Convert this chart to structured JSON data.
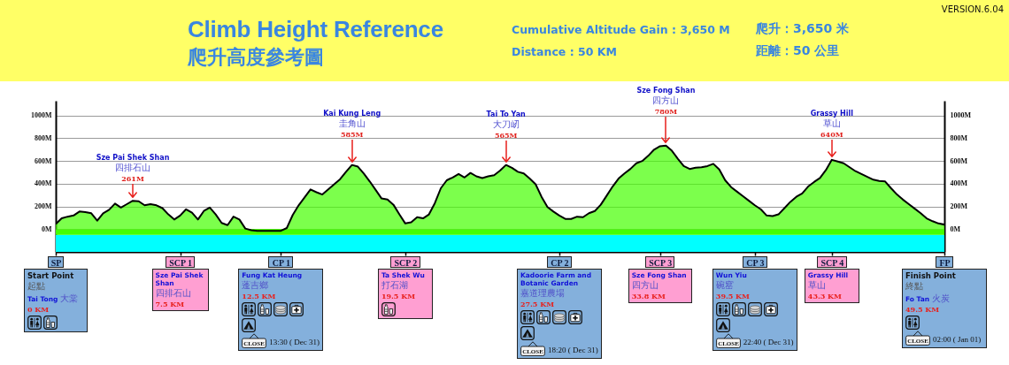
{
  "chart_data": {
    "type": "area",
    "title": "Climb Height Reference",
    "subtitle": "爬升高度參考圖",
    "categories": [
      "SP",
      null,
      null,
      null,
      null,
      null,
      null,
      null,
      null,
      null,
      null,
      null,
      null,
      null,
      null,
      null,
      null,
      null,
      null,
      null,
      null,
      "SCP 1",
      null,
      null,
      null,
      null,
      null,
      null,
      null,
      null,
      null,
      null,
      null,
      null,
      null,
      null,
      null,
      null,
      "CP 1",
      null,
      null,
      null,
      null,
      null,
      null,
      null,
      null,
      null,
      null,
      null,
      null,
      null,
      null,
      null,
      null,
      null,
      null,
      null,
      null,
      "SCP 2",
      null,
      null,
      null,
      null,
      null,
      null,
      null,
      null,
      null,
      null,
      null,
      null,
      null,
      null,
      null,
      null,
      null,
      null,
      null,
      null,
      null,
      null,
      null,
      null,
      null,
      "CP 2",
      null,
      null,
      null,
      null,
      null,
      null,
      null,
      null,
      null,
      null,
      null,
      null,
      null,
      null,
      null,
      null,
      "SCP 3",
      null,
      null,
      null,
      null,
      null,
      null,
      null,
      null,
      null,
      null,
      null,
      null,
      null,
      null,
      null,
      "CP 3",
      null,
      null,
      null,
      null,
      null,
      null,
      null,
      null,
      null,
      null,
      null,
      null,
      "SCP 4",
      null,
      null,
      null,
      null,
      null,
      null,
      null,
      null,
      null,
      null,
      null,
      null,
      null,
      null,
      null,
      null,
      null,
      null,
      "FP"
    ],
    "series": [
      {
        "color": "#44ff00",
        "values": [
          45,
          95,
          110,
          120,
          155,
          150,
          140,
          75,
          140,
          170,
          225,
          190,
          220,
          250,
          245,
          210,
          220,
          210,
          185,
          130,
          85,
          120,
          175,
          145,
          85,
          160,
          190,
          130,
          55,
          35,
          110,
          85,
          5,
          -10,
          -15,
          -15,
          -15,
          -15,
          -15,
          10,
          125,
          210,
          280,
          350,
          325,
          305,
          350,
          395,
          440,
          505,
          565,
          550,
          490,
          420,
          345,
          270,
          260,
          215,
          130,
          50,
          60,
          105,
          95,
          130,
          230,
          360,
          430,
          455,
          485,
          455,
          495,
          465,
          450,
          465,
          475,
          515,
          565,
          540,
          505,
          490,
          445,
          395,
          285,
          195,
          155,
          120,
          90,
          90,
          110,
          105,
          140,
          160,
          215,
          295,
          375,
          445,
          490,
          530,
          580,
          600,
          645,
          700,
          730,
          735,
          690,
          620,
          555,
          530,
          540,
          545,
          555,
          575,
          525,
          430,
          370,
          330,
          290,
          250,
          210,
          175,
          120,
          115,
          130,
          185,
          240,
          285,
          315,
          375,
          415,
          450,
          520,
          610,
          595,
          580,
          545,
          510,
          485,
          460,
          435,
          425,
          420,
          360,
          305,
          260,
          220,
          180,
          140,
          95,
          70,
          50,
          40
        ]
      }
    ],
    "ylim": [
      -200,
      1130
    ],
    "yticks": [
      {
        "value": 0,
        "label": "0M"
      },
      {
        "value": 200,
        "label": "200M"
      },
      {
        "value": 400,
        "label": "400M"
      },
      {
        "value": 600,
        "label": "600M"
      },
      {
        "value": 800,
        "label": "800M"
      },
      {
        "value": 1000,
        "label": "1000M"
      }
    ],
    "y2lim": [
      -200,
      1130
    ],
    "y2ticks": [
      {
        "value": 0,
        "label": "0M"
      },
      {
        "value": 200,
        "label": "200M"
      },
      {
        "value": 400,
        "label": "400M"
      },
      {
        "value": 600,
        "label": "600M"
      },
      {
        "value": 800,
        "label": "800M"
      },
      {
        "value": 1000,
        "label": "1000M"
      }
    ],
    "grid": "y",
    "bands": [
      {
        "axis": "y",
        "from": -200,
        "to": -50,
        "color": "#00ffff"
      },
      {
        "axis": "y",
        "from": -50,
        "to": 0,
        "color": "#44ff00"
      }
    ],
    "annotations": [
      "Cumulative Altitude Gain : 3,650 M",
      "Distance : 50 KM",
      "爬升：3,650 米",
      "距離：50 公里",
      "VERSION.6.04",
      "Sze Pai Shek Shan",
      "四排石山",
      "261M",
      "Kai Kung Leng",
      "圭角山",
      "585M",
      "Tai To Yan",
      "大刀屻",
      "565M",
      "Sze Fong Shan",
      "四方山",
      "780M",
      "Grassy Hill",
      "草山",
      "640M",
      "Start Point",
      "起點",
      "Tai Tong 大棠",
      "0 KM",
      "Sze Pai Shek Shan",
      "四排石山",
      "7.5 KM",
      "Fung Kat Heung",
      "蓬吉鄉",
      "12.5 KM",
      "CLOSE",
      "13:30 ( Dec 31)",
      "Ta Shek Wu",
      "打石湖",
      "19.5 KM",
      "Kadoorie Farm and Botanic Garden",
      "嘉道理農場",
      "27.5 KM",
      "CLOSE",
      "18:20 ( Dec 31)",
      "Sze Fong Shan",
      "四方山",
      "33.8 KM",
      "Wun Yiu",
      "碗窰",
      "39.5 KM",
      "CLOSE",
      "22:40 ( Dec 31)",
      "Grassy Hill",
      "草山",
      "43.3 KM",
      "Finish Point",
      "終點",
      "Fo Tan 火炭",
      "49.5 KM",
      "CLOSE",
      "02:00 ( Jan 01)"
    ]
  }
}
